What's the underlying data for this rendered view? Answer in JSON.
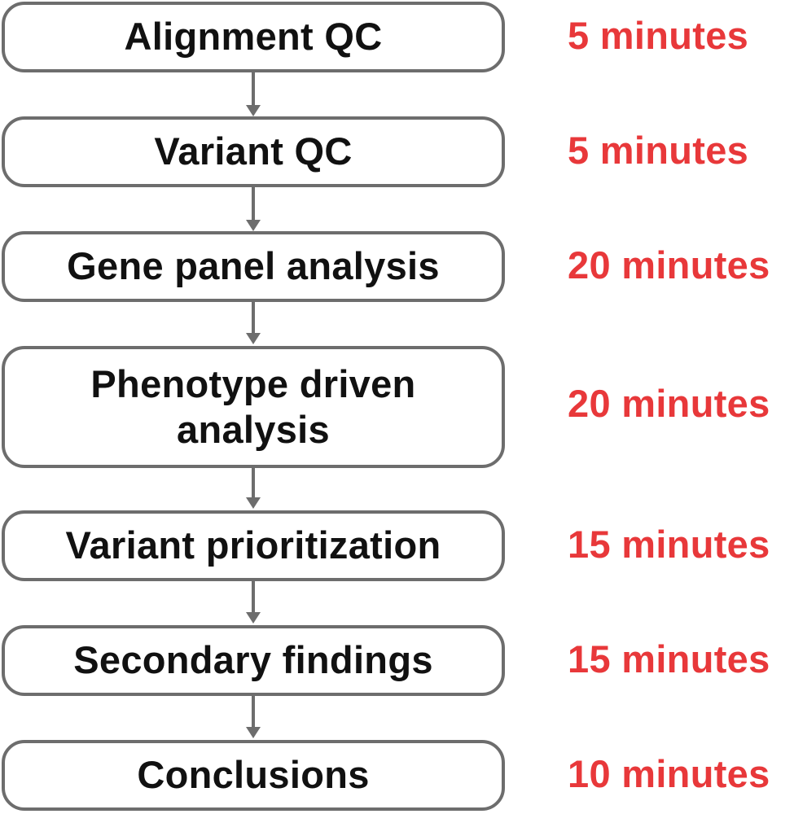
{
  "workflow": {
    "steps": [
      {
        "label": "Alignment QC",
        "time": "5 minutes"
      },
      {
        "label": "Variant QC",
        "time": "5 minutes"
      },
      {
        "label": "Gene panel analysis",
        "time": "20 minutes"
      },
      {
        "label": "Phenotype driven analysis",
        "time": "20 minutes"
      },
      {
        "label": "Variant prioritization",
        "time": "15 minutes"
      },
      {
        "label": "Secondary findings",
        "time": "15 minutes"
      },
      {
        "label": "Conclusions",
        "time": "10 minutes"
      }
    ]
  },
  "colors": {
    "box_border": "#6d6d6d",
    "label_text": "#111111",
    "time_text": "#e8383a",
    "arrow": "#6d6d6d"
  }
}
